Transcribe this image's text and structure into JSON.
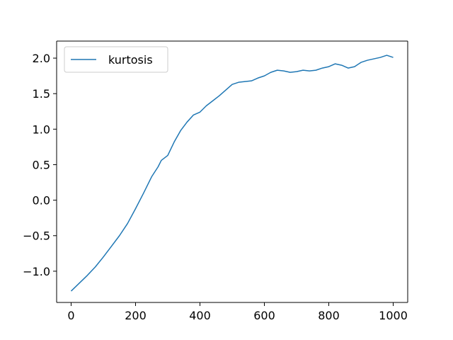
{
  "chart_data": {
    "type": "line",
    "title": "",
    "xlabel": "",
    "ylabel": "",
    "xlim": [
      -45,
      1045
    ],
    "ylim": [
      -1.44,
      2.24
    ],
    "xticks": [
      0,
      200,
      400,
      600,
      800,
      1000
    ],
    "yticks": [
      -1.0,
      -0.5,
      0.0,
      0.5,
      1.0,
      1.5,
      2.0
    ],
    "xtick_labels": [
      "0",
      "200",
      "400",
      "600",
      "800",
      "1000"
    ],
    "ytick_labels": [
      "−1.0",
      "−0.5",
      "0.0",
      "0.5",
      "1.0",
      "1.5",
      "2.0"
    ],
    "grid": false,
    "legend": {
      "position": "top-left",
      "entries": [
        "kurtosis"
      ]
    },
    "series": [
      {
        "name": "kurtosis",
        "color": "#1f77b4",
        "x": [
          0,
          25,
          50,
          75,
          100,
          125,
          150,
          175,
          200,
          225,
          250,
          270,
          280,
          300,
          320,
          340,
          360,
          380,
          400,
          420,
          440,
          460,
          480,
          500,
          520,
          540,
          560,
          580,
          600,
          620,
          640,
          660,
          680,
          700,
          720,
          740,
          760,
          780,
          800,
          820,
          840,
          860,
          880,
          900,
          920,
          940,
          960,
          980,
          1000
        ],
        "y": [
          -1.28,
          -1.17,
          -1.06,
          -0.94,
          -0.8,
          -0.65,
          -0.5,
          -0.33,
          -0.12,
          0.1,
          0.33,
          0.47,
          0.56,
          0.63,
          0.82,
          0.98,
          1.1,
          1.2,
          1.24,
          1.33,
          1.4,
          1.47,
          1.55,
          1.63,
          1.66,
          1.67,
          1.68,
          1.72,
          1.75,
          1.8,
          1.83,
          1.82,
          1.8,
          1.81,
          1.83,
          1.82,
          1.83,
          1.86,
          1.88,
          1.92,
          1.9,
          1.86,
          1.88,
          1.94,
          1.97,
          1.99,
          2.01,
          2.04,
          2.01
        ]
      }
    ]
  }
}
